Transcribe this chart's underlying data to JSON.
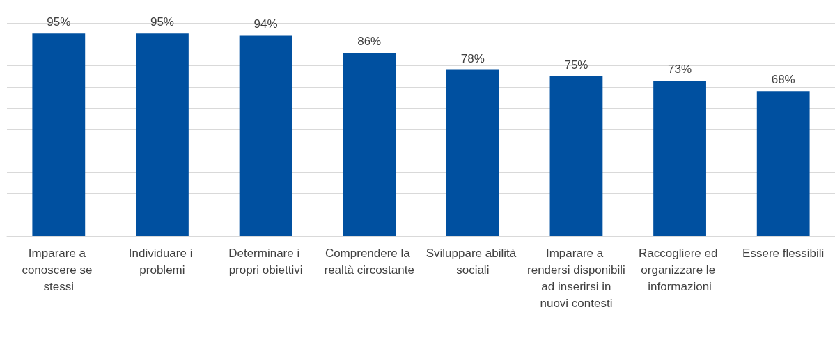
{
  "chart_data": {
    "type": "bar",
    "categories": [
      "Imparare a conoscere se stessi",
      "Individuare i problemi",
      "Determinare i propri obiettivi",
      "Comprendere la realtà circostante",
      "Sviluppare abilità sociali",
      "Imparare a rendersi disponibili ad inserirsi in nuovi contesti",
      "Raccogliere ed organizzare le informazioni",
      "Essere flessibili"
    ],
    "values": [
      95,
      95,
      94,
      86,
      78,
      75,
      73,
      68
    ],
    "value_labels": [
      "95%",
      "95%",
      "94%",
      "86%",
      "78%",
      "75%",
      "73%",
      "68%"
    ],
    "color": "#0050a0",
    "ylim": [
      0,
      100
    ],
    "yticks": [
      {
        "value": 0,
        "label": null
      },
      {
        "value": 10,
        "label": null
      },
      {
        "value": 20,
        "label": null
      },
      {
        "value": 30,
        "label": null
      },
      {
        "value": 40,
        "label": null
      },
      {
        "value": 50,
        "label": null
      },
      {
        "value": 60,
        "label": null
      },
      {
        "value": 70,
        "label": null
      },
      {
        "value": 80,
        "label": null
      },
      {
        "value": 90,
        "label": null
      },
      {
        "value": 100,
        "label": null
      }
    ],
    "tick_labels": "x",
    "grid": "y"
  }
}
